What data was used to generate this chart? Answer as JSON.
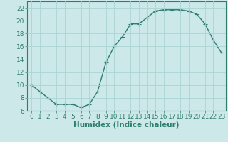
{
  "x": [
    0,
    1,
    2,
    3,
    4,
    5,
    6,
    7,
    8,
    9,
    10,
    11,
    12,
    13,
    14,
    15,
    16,
    17,
    18,
    19,
    20,
    21,
    22,
    23
  ],
  "y": [
    10,
    9,
    8,
    7,
    7,
    7,
    6.5,
    7,
    9,
    13.5,
    16,
    17.5,
    19.5,
    19.5,
    20.5,
    21.5,
    21.7,
    21.7,
    21.7,
    21.5,
    21,
    19.5,
    17,
    15
  ],
  "line_color": "#2e7d6e",
  "marker": "+",
  "marker_size": 4,
  "marker_color": "#2e7d6e",
  "bg_color": "#cce8e8",
  "grid_major_color": "#aad4d4",
  "xlabel": "Humidex (Indice chaleur)",
  "xlim": [
    -0.5,
    23.5
  ],
  "ylim": [
    6,
    23
  ],
  "yticks": [
    6,
    8,
    10,
    12,
    14,
    16,
    18,
    20,
    22
  ],
  "xticks": [
    0,
    1,
    2,
    3,
    4,
    5,
    6,
    7,
    8,
    9,
    10,
    11,
    12,
    13,
    14,
    15,
    16,
    17,
    18,
    19,
    20,
    21,
    22,
    23
  ],
  "tick_label_fontsize": 6.5,
  "xlabel_fontsize": 7.5,
  "axis_color": "#2e7d6e",
  "line_width": 1.0
}
